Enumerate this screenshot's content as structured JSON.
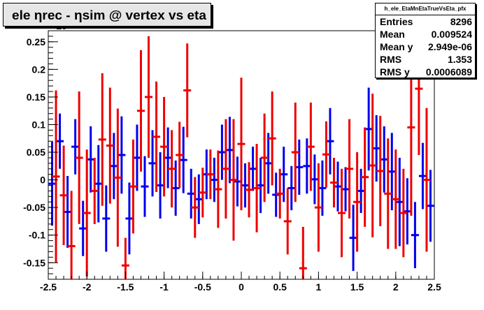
{
  "chart_data": {
    "type": "scatter",
    "title": "ele ηrec - ηsim @ vertex vs eta",
    "xlim": [
      -2.5,
      2.5
    ],
    "ylim": [
      -0.18,
      0.27
    ],
    "exponent_label": "×10",
    "xticks": [
      "-2.5",
      "-2",
      "-1.5",
      "-1",
      "-0.5",
      "0",
      "0.5",
      "1",
      "1.5",
      "2",
      "2.5"
    ],
    "xtick_values": [
      -2.5,
      -2,
      -1.5,
      -1,
      -0.5,
      0,
      0.5,
      1,
      1.5,
      2,
      2.5
    ],
    "yticks": [
      "-0.15",
      "-0.1",
      "-0.05",
      "0",
      "0.05",
      "0.1",
      "0.15",
      "0.2",
      "0.25"
    ],
    "ytick_values": [
      -0.15,
      -0.1,
      -0.05,
      0,
      0.05,
      0.1,
      0.15,
      0.2,
      0.25
    ],
    "grid": false,
    "legend": "none",
    "series": [
      {
        "color": "#0000ee",
        "points": [
          {
            "x": -2.45,
            "y": -0.007,
            "err": 0.076
          },
          {
            "x": -2.35,
            "y": 0.07,
            "err": 0.05
          },
          {
            "x": -2.25,
            "y": -0.058,
            "err": 0.065
          },
          {
            "x": -2.15,
            "y": 0.06,
            "err": 0.05
          },
          {
            "x": -2.05,
            "y": -0.088,
            "err": 0.05
          },
          {
            "x": -1.95,
            "y": 0.037,
            "err": 0.06
          },
          {
            "x": -1.85,
            "y": -0.007,
            "err": 0.07
          },
          {
            "x": -1.75,
            "y": -0.07,
            "err": 0.06
          },
          {
            "x": -1.65,
            "y": 0.025,
            "err": 0.06
          },
          {
            "x": -1.55,
            "y": 0.045,
            "err": 0.07
          },
          {
            "x": -1.45,
            "y": -0.07,
            "err": 0.065
          },
          {
            "x": -1.35,
            "y": 0.04,
            "err": 0.06
          },
          {
            "x": -1.25,
            "y": -0.012,
            "err": 0.055
          },
          {
            "x": -1.15,
            "y": 0.03,
            "err": 0.06
          },
          {
            "x": -1.05,
            "y": -0.01,
            "err": 0.06
          },
          {
            "x": -0.95,
            "y": 0.04,
            "err": 0.055
          },
          {
            "x": -0.85,
            "y": -0.015,
            "err": 0.05
          },
          {
            "x": -0.75,
            "y": 0.036,
            "err": 0.06
          },
          {
            "x": -0.65,
            "y": -0.025,
            "err": 0.045
          },
          {
            "x": -0.55,
            "y": -0.035,
            "err": 0.045
          },
          {
            "x": -0.45,
            "y": 0.01,
            "err": 0.045
          },
          {
            "x": -0.35,
            "y": 0.0,
            "err": 0.04
          },
          {
            "x": -0.25,
            "y": 0.05,
            "err": 0.05
          },
          {
            "x": -0.15,
            "y": 0.054,
            "err": 0.06
          },
          {
            "x": -0.05,
            "y": -0.003,
            "err": 0.045
          },
          {
            "x": 0.05,
            "y": -0.01,
            "err": 0.04
          },
          {
            "x": 0.15,
            "y": 0.02,
            "err": 0.04
          },
          {
            "x": 0.25,
            "y": -0.01,
            "err": 0.05
          },
          {
            "x": 0.35,
            "y": 0.03,
            "err": 0.055
          },
          {
            "x": 0.45,
            "y": -0.027,
            "err": 0.04
          },
          {
            "x": 0.55,
            "y": 0.01,
            "err": 0.05
          },
          {
            "x": 0.65,
            "y": -0.015,
            "err": 0.04
          },
          {
            "x": 0.75,
            "y": 0.023,
            "err": 0.05
          },
          {
            "x": 0.85,
            "y": 0.025,
            "err": 0.05
          },
          {
            "x": 0.95,
            "y": 0.001,
            "err": 0.045
          },
          {
            "x": 1.05,
            "y": -0.015,
            "err": 0.05
          },
          {
            "x": 1.15,
            "y": 0.07,
            "err": 0.06
          },
          {
            "x": 1.25,
            "y": -0.012,
            "err": 0.045
          },
          {
            "x": 1.35,
            "y": -0.017,
            "err": 0.04
          },
          {
            "x": 1.45,
            "y": -0.105,
            "err": 0.06
          },
          {
            "x": 1.55,
            "y": -0.02,
            "err": 0.04
          },
          {
            "x": 1.65,
            "y": 0.092,
            "err": 0.075
          },
          {
            "x": 1.75,
            "y": 0.057,
            "err": 0.06
          },
          {
            "x": 1.85,
            "y": 0.037,
            "err": 0.06
          },
          {
            "x": 1.95,
            "y": 0.015,
            "err": 0.07
          },
          {
            "x": 2.05,
            "y": -0.04,
            "err": 0.08
          },
          {
            "x": 2.15,
            "y": -0.057,
            "err": 0.06
          },
          {
            "x": 2.25,
            "y": -0.1,
            "err": 0.06
          },
          {
            "x": 2.35,
            "y": 0.007,
            "err": 0.06
          },
          {
            "x": 2.45,
            "y": -0.047,
            "err": 0.065
          }
        ]
      },
      {
        "color": "#ee0000",
        "points": [
          {
            "x": -2.4,
            "y": 0.006,
            "err": 0.156
          },
          {
            "x": -2.3,
            "y": -0.028,
            "err": 0.09
          },
          {
            "x": -2.2,
            "y": -0.12,
            "err": 0.1
          },
          {
            "x": -2.1,
            "y": 0.04,
            "err": 0.12
          },
          {
            "x": -2.0,
            "y": -0.06,
            "err": 0.115
          },
          {
            "x": -1.9,
            "y": -0.02,
            "err": 0.06
          },
          {
            "x": -1.8,
            "y": 0.073,
            "err": 0.12
          },
          {
            "x": -1.7,
            "y": 0.062,
            "err": 0.105
          },
          {
            "x": -1.6,
            "y": 0.004,
            "err": 0.125
          },
          {
            "x": -1.5,
            "y": -0.155,
            "err": 0.05
          },
          {
            "x": -1.4,
            "y": -0.012,
            "err": 0.085
          },
          {
            "x": -1.3,
            "y": 0.125,
            "err": 0.11
          },
          {
            "x": -1.2,
            "y": 0.15,
            "err": 0.11
          },
          {
            "x": -1.1,
            "y": 0.078,
            "err": 0.1
          },
          {
            "x": -1.0,
            "y": 0.06,
            "err": 0.09
          },
          {
            "x": -0.9,
            "y": 0.02,
            "err": 0.07
          },
          {
            "x": -0.8,
            "y": 0.045,
            "err": 0.06
          },
          {
            "x": -0.7,
            "y": 0.162,
            "err": 0.085
          },
          {
            "x": -0.6,
            "y": -0.05,
            "err": 0.055
          },
          {
            "x": -0.5,
            "y": -0.023,
            "err": 0.045
          },
          {
            "x": -0.4,
            "y": 0.01,
            "err": 0.045
          },
          {
            "x": -0.3,
            "y": -0.017,
            "err": 0.07
          },
          {
            "x": -0.2,
            "y": 0.02,
            "err": 0.09
          },
          {
            "x": -0.1,
            "y": 0.0,
            "err": 0.11
          },
          {
            "x": 0.0,
            "y": 0.065,
            "err": 0.12
          },
          {
            "x": 0.1,
            "y": -0.018,
            "err": 0.05
          },
          {
            "x": 0.2,
            "y": -0.015,
            "err": 0.08
          },
          {
            "x": 0.3,
            "y": 0.04,
            "err": 0.08
          },
          {
            "x": 0.4,
            "y": 0.075,
            "err": 0.085
          },
          {
            "x": 0.5,
            "y": -0.025,
            "err": 0.045
          },
          {
            "x": 0.6,
            "y": -0.075,
            "err": 0.06
          },
          {
            "x": 0.7,
            "y": 0.05,
            "err": 0.09
          },
          {
            "x": 0.8,
            "y": -0.16,
            "err": 0.075
          },
          {
            "x": 0.9,
            "y": 0.06,
            "err": 0.08
          },
          {
            "x": 1.0,
            "y": -0.05,
            "err": 0.08
          },
          {
            "x": 1.1,
            "y": 0.046,
            "err": 0.06
          },
          {
            "x": 1.2,
            "y": -0.005,
            "err": 0.045
          },
          {
            "x": 1.3,
            "y": -0.06,
            "err": 0.08
          },
          {
            "x": 1.4,
            "y": 0.02,
            "err": 0.09
          },
          {
            "x": 1.5,
            "y": -0.04,
            "err": 0.09
          },
          {
            "x": 1.6,
            "y": 0.005,
            "err": 0.09
          },
          {
            "x": 1.7,
            "y": 0.026,
            "err": 0.13
          },
          {
            "x": 1.8,
            "y": 0.016,
            "err": 0.1
          },
          {
            "x": 1.9,
            "y": -0.025,
            "err": 0.1
          },
          {
            "x": 2.0,
            "y": -0.035,
            "err": 0.09
          },
          {
            "x": 2.1,
            "y": -0.06,
            "err": 0.08
          },
          {
            "x": 2.2,
            "y": 0.095,
            "err": 0.16
          },
          {
            "x": 2.3,
            "y": 0.165,
            "err": 0.12
          },
          {
            "x": 2.4,
            "y": 0.0,
            "err": 0.13
          }
        ]
      }
    ]
  },
  "stats": {
    "name": "h_ele_EtaMnEtaTrueVsEta_pfx",
    "rows": [
      {
        "label": "Entries",
        "value": "8296"
      },
      {
        "label": "Mean",
        "value": "0.009524"
      },
      {
        "label": "Mean y",
        "value": "2.949e-06"
      },
      {
        "label": "RMS",
        "value": "1.353"
      },
      {
        "label": "RMS y",
        "value": "0.0006089"
      }
    ]
  }
}
